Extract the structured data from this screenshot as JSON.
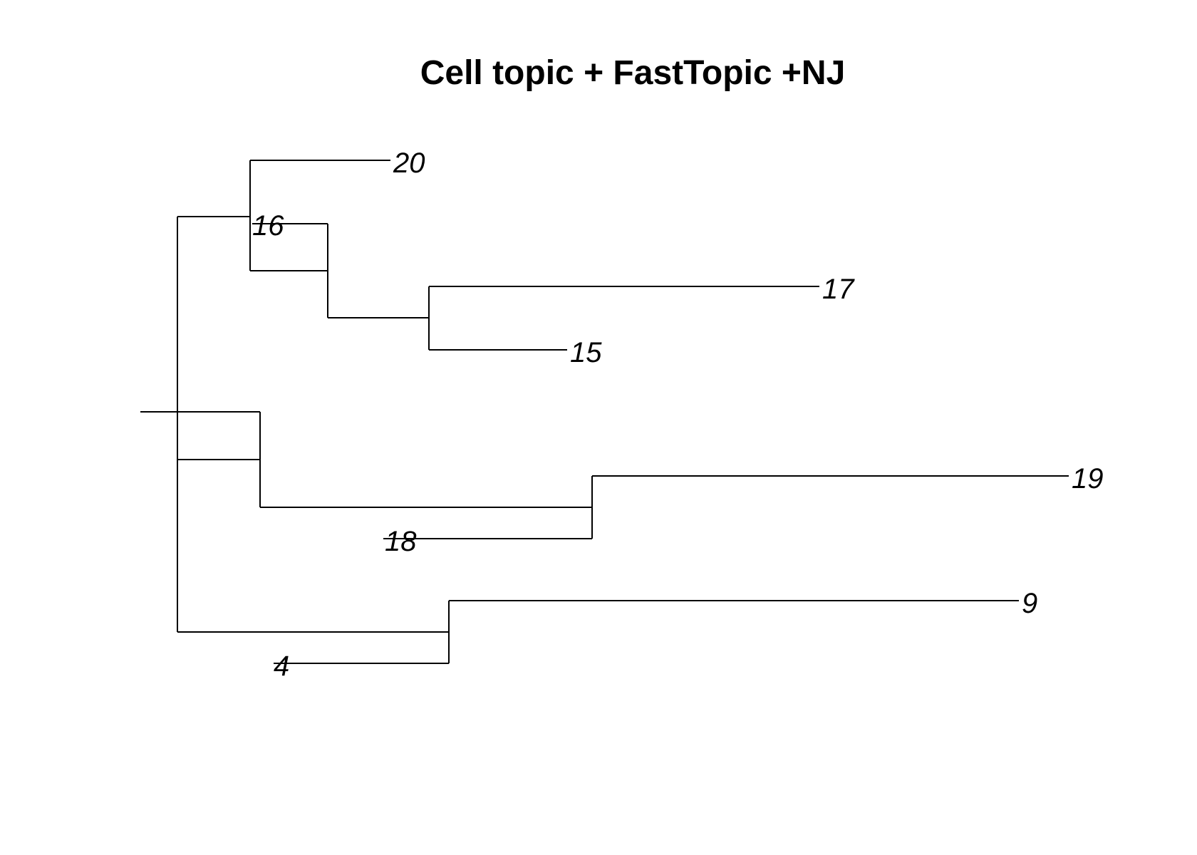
{
  "title": "Cell topic + FastTopic +NJ",
  "tree": {
    "type": "phylogram",
    "method": "NJ",
    "tips": [
      {
        "id": "t20",
        "label": "20"
      },
      {
        "id": "t16",
        "label": "16"
      },
      {
        "id": "t17",
        "label": "17"
      },
      {
        "id": "t15",
        "label": "15"
      },
      {
        "id": "t19",
        "label": "19"
      },
      {
        "id": "t18",
        "label": "18"
      },
      {
        "id": "t9",
        "label": "9"
      },
      {
        "id": "t4",
        "label": "4"
      }
    ]
  }
}
